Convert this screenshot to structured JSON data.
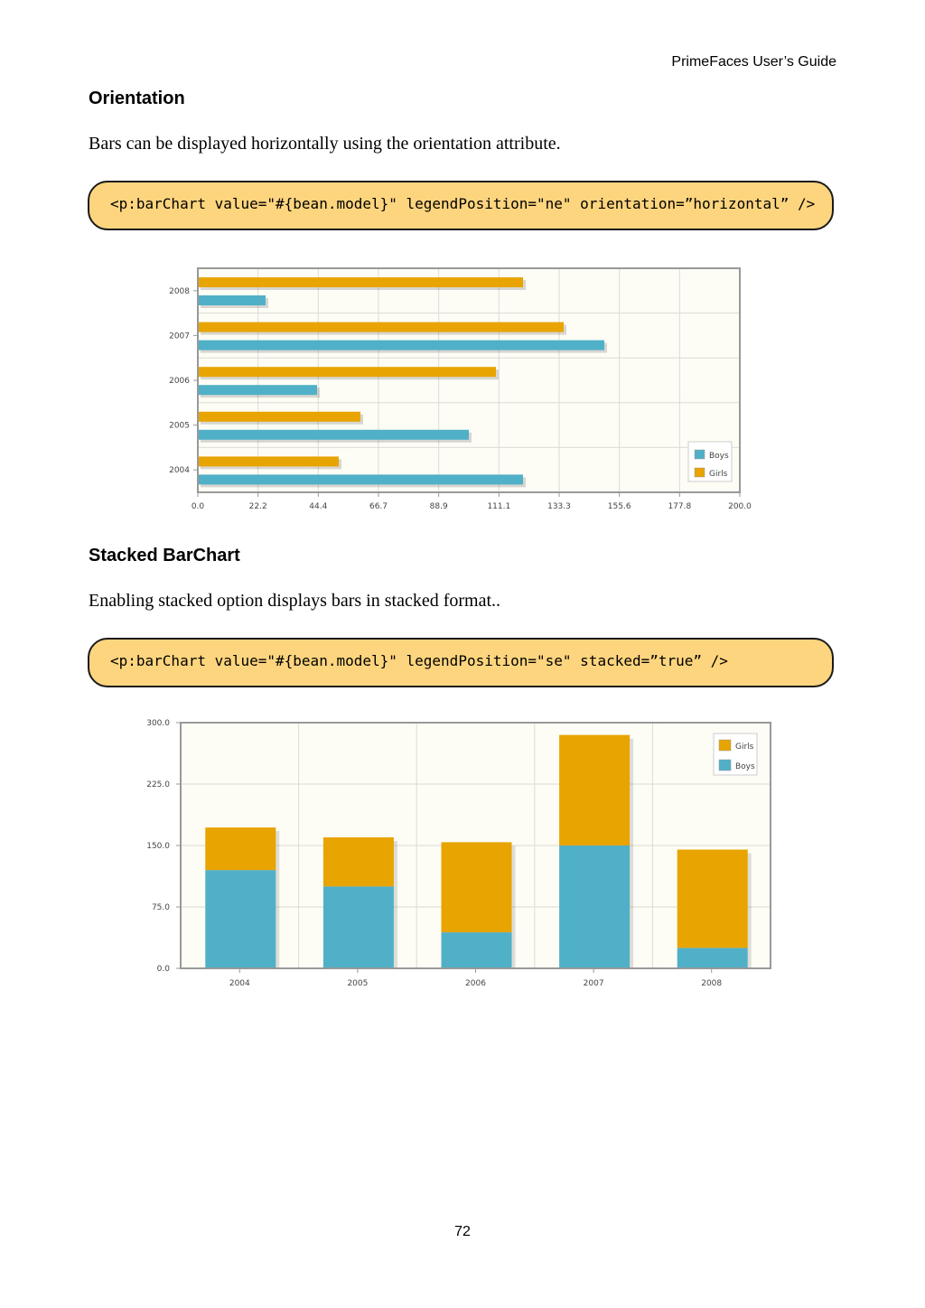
{
  "header": {
    "title": "PrimeFaces User’s Guide"
  },
  "sections": [
    {
      "heading": "Orientation",
      "text": "Bars can be displayed horizontally using the orientation attribute.",
      "code": "<p:barChart value=\"#{bean.model}\" legendPosition=\"ne\" orientation=”horizontal” />"
    },
    {
      "heading": "Stacked BarChart",
      "text": "Enabling stacked option displays bars in stacked format..",
      "code": "<p:barChart value=\"#{bean.model}\" legendPosition=\"se\" stacked=”true” />"
    }
  ],
  "colors": {
    "boys": "#4fb0c8",
    "girls": "#e8a400",
    "plot_bg": "#fdfcf5",
    "code_bg": "#fdd57e"
  },
  "chart_data": [
    {
      "type": "bar",
      "orientation": "horizontal",
      "categories": [
        "2004",
        "2005",
        "2006",
        "2007",
        "2008"
      ],
      "series": [
        {
          "name": "Boys",
          "values": [
            120,
            100,
            44,
            150,
            25
          ]
        },
        {
          "name": "Girls",
          "values": [
            52,
            60,
            110,
            135,
            120
          ]
        }
      ],
      "xlim": [
        0,
        200
      ],
      "xticks": [
        "0.0",
        "22.2",
        "44.4",
        "66.7",
        "88.9",
        "111.1",
        "133.3",
        "155.6",
        "177.8",
        "200.0"
      ],
      "legend": {
        "position": "bottom-right",
        "entries": [
          "Boys",
          "Girls"
        ]
      },
      "grid": true
    },
    {
      "type": "bar",
      "stacked": true,
      "categories": [
        "2004",
        "2005",
        "2006",
        "2007",
        "2008"
      ],
      "series": [
        {
          "name": "Boys",
          "values": [
            120,
            100,
            44,
            150,
            25
          ]
        },
        {
          "name": "Girls",
          "values": [
            52,
            60,
            110,
            135,
            120
          ]
        }
      ],
      "ylim": [
        0,
        300
      ],
      "yticks": [
        "0.0",
        "75.0",
        "150.0",
        "225.0",
        "300.0"
      ],
      "legend": {
        "position": "top-right",
        "entries": [
          "Girls",
          "Boys"
        ]
      },
      "grid": true
    }
  ],
  "page_number": "72"
}
